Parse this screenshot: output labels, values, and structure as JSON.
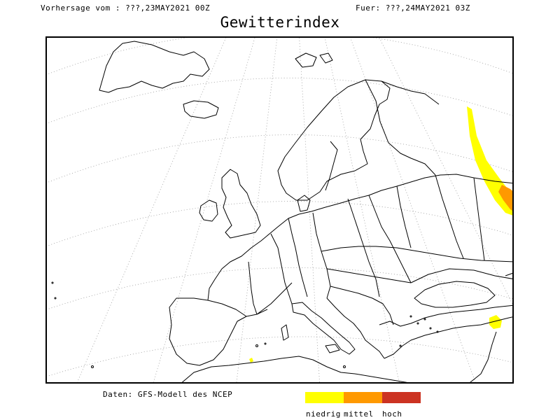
{
  "header": {
    "forecast_from": "Vorhersage vom : ???,23MAY2021 00Z",
    "valid_for": "Fuer: ???,24MAY2021 03Z"
  },
  "title": "Gewitterindex",
  "source": "Daten: GFS-Modell des NCEP",
  "legend": [
    {
      "label": "niedrig",
      "color": "#ffff00"
    },
    {
      "label": "mittel",
      "color": "#ff9900"
    },
    {
      "label": "hoch",
      "color": "#cc3322"
    }
  ],
  "map": {
    "region": "Europe",
    "graticule": "dotted",
    "coastline_color": "#000000",
    "thunder_areas": [
      {
        "location": "western Russia",
        "levels": [
          "niedrig",
          "mittel"
        ]
      },
      {
        "location": "Levant",
        "levels": [
          "niedrig"
        ]
      },
      {
        "location": "Algeria",
        "levels": [
          "niedrig"
        ]
      }
    ]
  }
}
